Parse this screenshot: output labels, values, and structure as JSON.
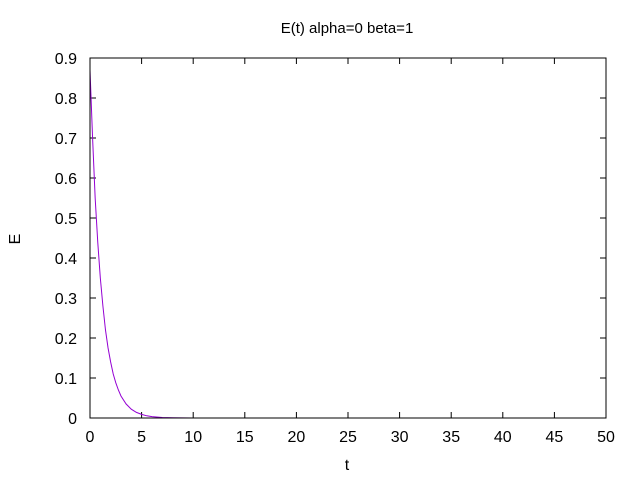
{
  "chart_data": {
    "type": "line",
    "title": "E(t) alpha=0 beta=1",
    "xlabel": "t",
    "ylabel": "E",
    "xlim": [
      0,
      50
    ],
    "ylim": [
      0,
      0.9
    ],
    "x_ticks": [
      0,
      5,
      10,
      15,
      20,
      25,
      30,
      35,
      40,
      45,
      50
    ],
    "y_ticks": [
      0,
      0.1,
      0.2,
      0.3,
      0.4,
      0.5,
      0.6,
      0.7,
      0.8,
      0.9
    ],
    "grid": false,
    "legend": "none",
    "series": [
      {
        "color": "#9400d3",
        "x": [
          0,
          0.25,
          0.5,
          0.75,
          1,
          1.25,
          1.5,
          1.75,
          2,
          2.25,
          2.5,
          2.75,
          3,
          3.5,
          4,
          4.5,
          5,
          5.5,
          6,
          7,
          8,
          9,
          10,
          11,
          12,
          13,
          14,
          15,
          15.9
        ],
        "y": [
          0.87,
          0.7,
          0.55,
          0.44,
          0.35,
          0.28,
          0.22,
          0.175,
          0.14,
          0.11,
          0.088,
          0.07,
          0.055,
          0.035,
          0.022,
          0.014,
          0.009,
          0.0055,
          0.0035,
          0.0014,
          0.0006,
          0.00025,
          0.0001,
          5e-05,
          2e-05,
          1e-05,
          5e-06,
          2e-06,
          1e-06
        ]
      }
    ]
  }
}
